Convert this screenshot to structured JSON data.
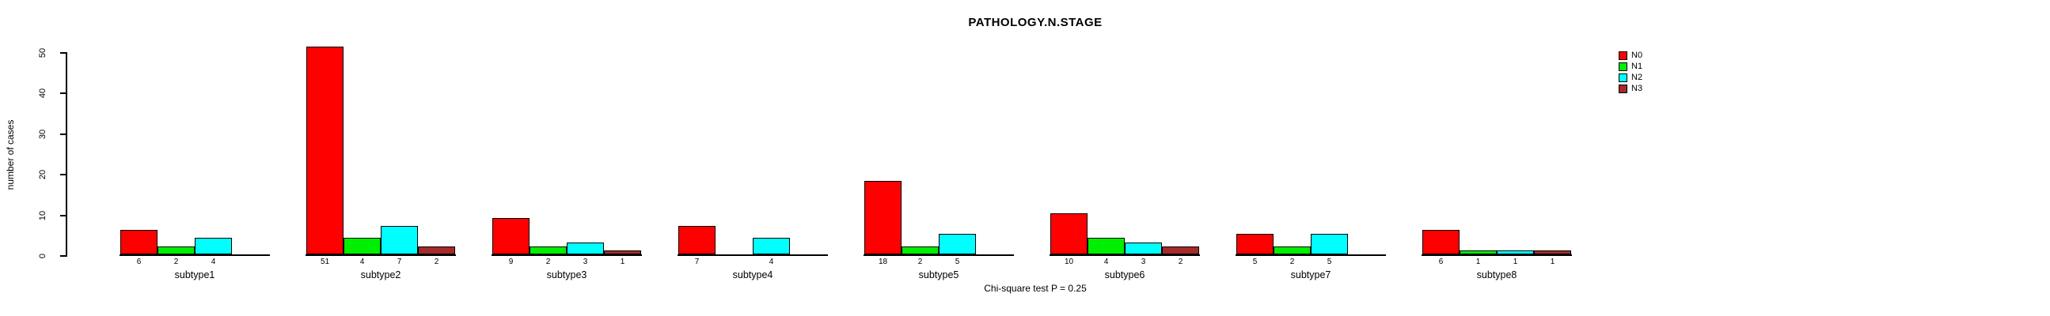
{
  "title": "PATHOLOGY.N.STAGE",
  "caption": "Chi-square test P = 0.25",
  "chart_data": {
    "type": "bar",
    "title": "PATHOLOGY.N.STAGE",
    "xlabel": "",
    "ylabel": "number of cases",
    "ylim": [
      0,
      50
    ],
    "yticks": [
      0,
      10,
      20,
      30,
      40,
      50
    ],
    "grid": false,
    "legend_position": "top-right",
    "bar_value_labels_shown": true,
    "zero_bars_unlabeled": true,
    "categories": [
      "subtype1",
      "subtype2",
      "subtype3",
      "subtype4",
      "subtype5",
      "subtype6",
      "subtype7",
      "subtype8"
    ],
    "series": [
      {
        "name": "N0",
        "color": "#ff0000",
        "values": [
          6,
          51,
          9,
          7,
          18,
          10,
          5,
          6
        ]
      },
      {
        "name": "N1",
        "color": "#00ee00",
        "values": [
          2,
          4,
          2,
          0,
          2,
          4,
          2,
          1
        ]
      },
      {
        "name": "N2",
        "color": "#00ffff",
        "values": [
          4,
          7,
          3,
          4,
          5,
          3,
          5,
          1
        ]
      },
      {
        "name": "N3",
        "color": "#a52a2a",
        "values": [
          0,
          2,
          1,
          0,
          0,
          2,
          0,
          1
        ]
      }
    ],
    "annotation": "Chi-square test P = 0.25"
  },
  "legend": {
    "items": [
      {
        "label": "N0",
        "color": "#ff0000"
      },
      {
        "label": "N1",
        "color": "#00ee00"
      },
      {
        "label": "N2",
        "color": "#00ffff"
      },
      {
        "label": "N3",
        "color": "#a52a2a"
      }
    ]
  },
  "axis_color": "#000000"
}
